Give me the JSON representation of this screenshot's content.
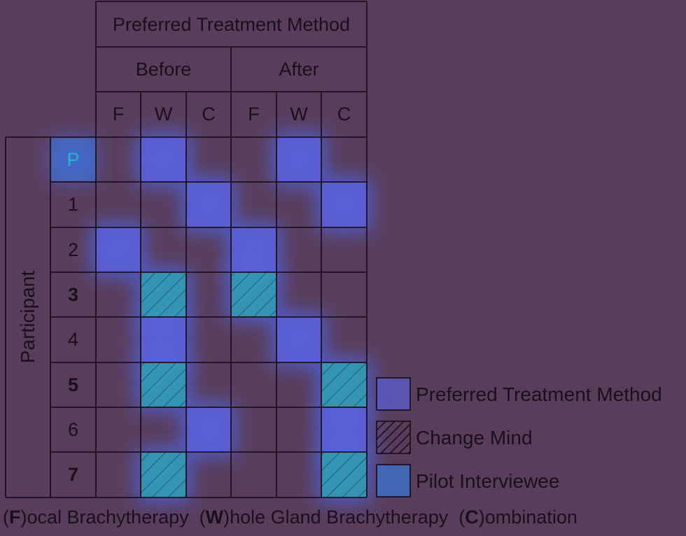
{
  "header": {
    "title": "Preferred Treatment Method",
    "groups": [
      "Before",
      "After"
    ],
    "columns": [
      "F",
      "W",
      "C",
      "F",
      "W",
      "C"
    ]
  },
  "y_axis_label": "Participant",
  "rows": [
    {
      "label": "P",
      "style": "pilot",
      "before": "W",
      "after": "W",
      "before_changed": false,
      "after_changed": false
    },
    {
      "label": "1",
      "style": "normal",
      "before": "C",
      "after": "C",
      "before_changed": false,
      "after_changed": false
    },
    {
      "label": "2",
      "style": "normal",
      "before": "F",
      "after": "F",
      "before_changed": false,
      "after_changed": false
    },
    {
      "label": "3",
      "style": "bold",
      "before": "W",
      "after": "F",
      "before_changed": true,
      "after_changed": true
    },
    {
      "label": "4",
      "style": "normal",
      "before": "W",
      "after": "W",
      "before_changed": false,
      "after_changed": false
    },
    {
      "label": "5",
      "style": "bold",
      "before": "W",
      "after": "C",
      "before_changed": true,
      "after_changed": true
    },
    {
      "label": "6",
      "style": "normal",
      "before": "C",
      "after": "C",
      "before_changed": false,
      "after_changed": false
    },
    {
      "label": "7",
      "style": "bold",
      "before": "W",
      "after": "C",
      "before_changed": true,
      "after_changed": true
    }
  ],
  "legend": [
    {
      "key": "preferred",
      "label": "Preferred Treatment Method"
    },
    {
      "key": "change",
      "label": "Change Mind"
    },
    {
      "key": "pilot",
      "label": "Pilot Interviewee"
    }
  ],
  "footnote": {
    "parts": [
      {
        "t": "(",
        "b": false
      },
      {
        "t": "F",
        "b": true
      },
      {
        "t": ")ocal Brachytherapy  (",
        "b": false
      },
      {
        "t": "W",
        "b": true
      },
      {
        "t": ")hole Gland Brachytherapy  (",
        "b": false
      },
      {
        "t": "C",
        "b": true
      },
      {
        "t": ")ombination",
        "b": false
      }
    ]
  },
  "colors": {
    "background": "#593e5c",
    "line": "#1d1020",
    "highlight": "#5a5fd6",
    "glow": "#4d6bff",
    "hatch_fill": "#2f9fb0",
    "pilot_fill": "#3a78d8",
    "pilot_text": "#1fb8c8"
  }
}
